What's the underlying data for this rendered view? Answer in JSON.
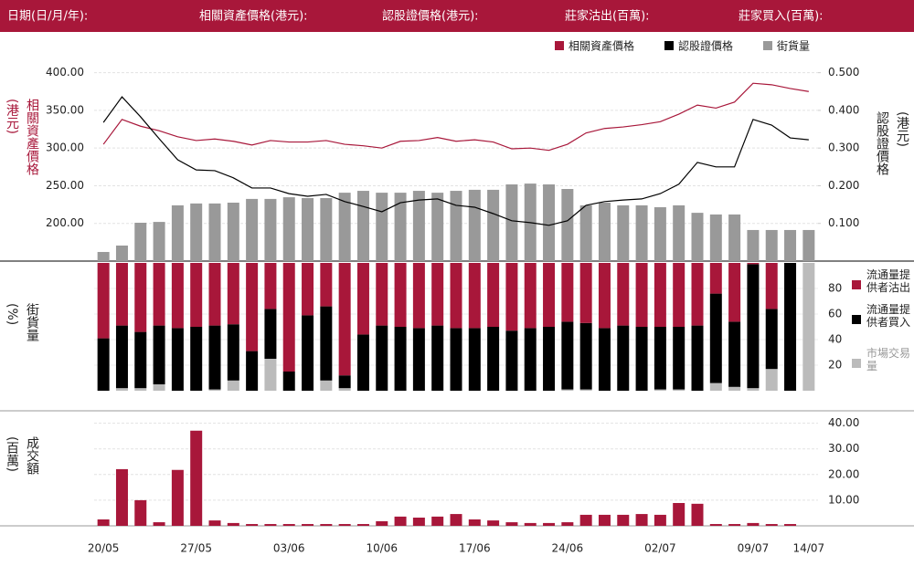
{
  "header": {
    "labels": [
      "日期(日/月/年):",
      "相關資產價格(港元):",
      "認股證價格(港元):",
      "莊家沽出(百萬):",
      "莊家買入(百萬):"
    ]
  },
  "chart_data": [
    {
      "type": "bar-line",
      "ylabel": "相關資產價格(港元)",
      "y2label": "認股證價格(港元)",
      "ylim": [
        150,
        425
      ],
      "yticks": [
        {
          "value": 200,
          "label": "200.00"
        },
        {
          "value": 250,
          "label": "250.00"
        },
        {
          "value": 300,
          "label": "300.00"
        },
        {
          "value": 350,
          "label": "350.00"
        },
        {
          "value": 400,
          "label": "400.00"
        }
      ],
      "y2lim": [
        0,
        0.55
      ],
      "y2ticks": [
        {
          "value": 0.1,
          "label": "0.100"
        },
        {
          "value": 0.2,
          "label": "0.200"
        },
        {
          "value": 0.3,
          "label": "0.300"
        },
        {
          "value": 0.4,
          "label": "0.400"
        },
        {
          "value": 0.5,
          "label": "0.500"
        }
      ],
      "y3lim": [
        0,
        100
      ],
      "grid": true,
      "series": [
        {
          "name": "相關資產價格",
          "type": "line",
          "color": "#a8173a",
          "axis": "y",
          "values": [
            305,
            338,
            329,
            323,
            315,
            310,
            312,
            309,
            304,
            310,
            308,
            308,
            310,
            305,
            303,
            300,
            309,
            310,
            314,
            309,
            311,
            308,
            299,
            300,
            297,
            305,
            320,
            326,
            328,
            331,
            335,
            345,
            357,
            353,
            361,
            386,
            384,
            379,
            375
          ]
        },
        {
          "name": "認股證價格",
          "type": "line",
          "color": "#000000",
          "axis": "y2",
          "values": [
            0.368,
            0.436,
            0.383,
            0.325,
            0.269,
            0.242,
            0.24,
            0.221,
            0.194,
            0.194,
            0.179,
            0.172,
            0.177,
            0.158,
            0.145,
            0.131,
            0.155,
            0.162,
            0.165,
            0.148,
            0.143,
            0.126,
            0.107,
            0.102,
            0.095,
            0.107,
            0.148,
            0.158,
            0.162,
            0.165,
            0.179,
            0.204,
            0.262,
            0.25,
            0.25,
            0.376,
            0.361,
            0.327,
            0.322
          ]
        },
        {
          "name": "街貨量",
          "type": "bar",
          "color": "#999999",
          "axis": "y3",
          "values": [
            4.4,
            7.5,
            18.5,
            18.9,
            26.9,
            27.8,
            27.8,
            28.2,
            30,
            30,
            30.8,
            30.4,
            30.4,
            33,
            33.9,
            33,
            33,
            33.9,
            33,
            33.9,
            34.4,
            34.4,
            37,
            37.4,
            37,
            34.8,
            26.9,
            28.2,
            26.9,
            26.9,
            26,
            26.9,
            23.3,
            22.5,
            22.5,
            15,
            15,
            15,
            15
          ]
        }
      ]
    },
    {
      "type": "stacked-bar",
      "ylabel": "街貨量(%)",
      "ylim": [
        0,
        100
      ],
      "yticks": [
        20,
        40,
        60,
        80
      ],
      "grid": true,
      "series": [
        {
          "name": "流通量提供者沽出",
          "color": "#a8173a",
          "values": [
            59,
            49,
            54,
            49,
            51,
            50,
            49,
            48,
            69,
            36,
            85,
            41,
            34,
            88,
            56,
            49,
            50,
            51,
            49,
            51,
            51,
            50,
            53,
            51,
            50,
            46,
            47,
            51,
            49,
            50,
            50,
            50,
            49,
            24,
            46,
            1,
            36,
            0,
            0
          ]
        },
        {
          "name": "流通量提供者買入",
          "color": "#000000",
          "values": [
            41,
            49,
            44,
            46,
            49,
            50,
            50,
            44,
            31,
            39,
            15,
            59,
            58,
            10,
            44,
            51,
            50,
            49,
            51,
            49,
            49,
            50,
            47,
            49,
            50,
            53,
            52,
            49,
            51,
            50,
            49,
            49,
            51,
            70,
            51,
            97,
            47,
            100,
            0
          ]
        },
        {
          "name": "市場交易量",
          "color": "#bbbbbb",
          "values": [
            0,
            2,
            2,
            5,
            0,
            0,
            1,
            8,
            0,
            25,
            0,
            0,
            8,
            2,
            0,
            0,
            0,
            0,
            0,
            0,
            0,
            0,
            0,
            0,
            0,
            1,
            1,
            0,
            0,
            0,
            1,
            1,
            0,
            6,
            3,
            2,
            17,
            0,
            100
          ]
        }
      ]
    },
    {
      "type": "bar",
      "ylabel": "成交額(百萬)",
      "color": "#a8173a",
      "ylim": [
        0,
        42
      ],
      "yticks": [
        {
          "value": 10,
          "label": "10.00"
        },
        {
          "value": 20,
          "label": "20.00"
        },
        {
          "value": 30,
          "label": "30.00"
        },
        {
          "value": 40,
          "label": "40.00"
        }
      ],
      "grid": true,
      "categories": [
        "20/05",
        null,
        null,
        null,
        null,
        "27/05",
        null,
        null,
        null,
        null,
        "03/06",
        null,
        null,
        null,
        null,
        "10/06",
        null,
        null,
        null,
        null,
        "17/06",
        null,
        null,
        null,
        null,
        "24/06",
        null,
        null,
        null,
        null,
        "02/07",
        null,
        null,
        null,
        null,
        "09/07",
        null,
        null,
        "14/07"
      ],
      "values": [
        2.5,
        22.1,
        10,
        1.4,
        21.8,
        37.1,
        2.1,
        1.1,
        0.7,
        0.7,
        0.7,
        0.7,
        0.7,
        0.7,
        0.7,
        1.8,
        3.6,
        3.2,
        3.6,
        4.6,
        2.5,
        2.1,
        1.4,
        1.1,
        1.1,
        1.4,
        4.3,
        4.3,
        4.3,
        4.6,
        4.3,
        8.9,
        8.6,
        0.7,
        0.7,
        1.1,
        0.7,
        0.7,
        0
      ]
    }
  ]
}
